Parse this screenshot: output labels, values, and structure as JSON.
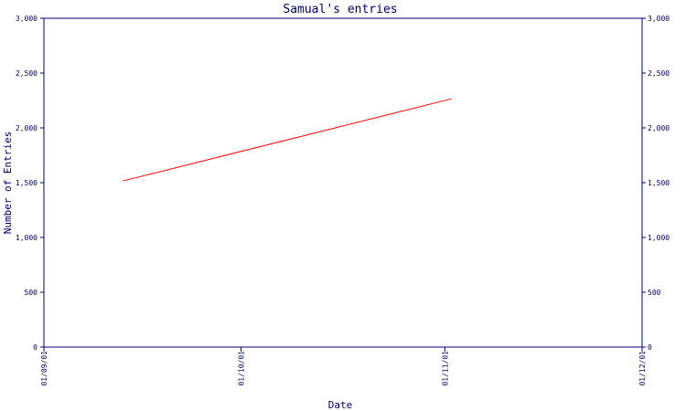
{
  "chart_data": {
    "type": "line",
    "title": "Samual's entries",
    "xlabel": "Date",
    "ylabel": "Number of Entries",
    "xlim": [
      "01/09/01",
      "01/12/01"
    ],
    "ylim": [
      0,
      3000
    ],
    "x_ticks": [
      "01/09/01",
      "01/10/01",
      "01/11/01",
      "01/12/01"
    ],
    "y_ticks": [
      "0",
      "500",
      "1,000",
      "1,500",
      "2,000",
      "2,500",
      "3,000"
    ],
    "y_tick_values": [
      0,
      500,
      1000,
      1500,
      2000,
      2500,
      3000
    ],
    "grid": false,
    "right_axis": true,
    "series": [
      {
        "color": "#ff0000",
        "points": [
          {
            "x": "01/09/13",
            "y": 1515
          },
          {
            "x": "01/11/02",
            "y": 2265
          }
        ]
      }
    ],
    "axis_color": "#000080"
  }
}
